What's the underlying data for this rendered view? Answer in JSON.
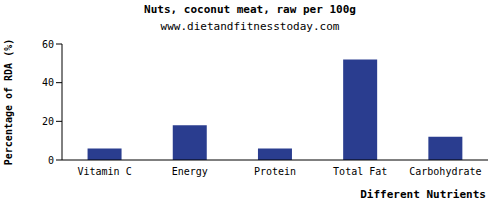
{
  "chart_data": {
    "type": "bar",
    "title": "Nuts, coconut meat, raw per 100g",
    "subtitle": "www.dietandfitnesstoday.com",
    "x_label": "Different Nutrients",
    "y_label": "Percentage of RDA (%)",
    "categories": [
      "Vitamin C",
      "Energy",
      "Protein",
      "Total Fat",
      "Carbohydrate"
    ],
    "values": [
      6,
      18,
      6,
      52,
      12
    ],
    "color": "#2a3d8f",
    "ylim": [
      0,
      60
    ],
    "yticks": [
      0,
      20,
      40,
      60
    ],
    "grid": false
  }
}
